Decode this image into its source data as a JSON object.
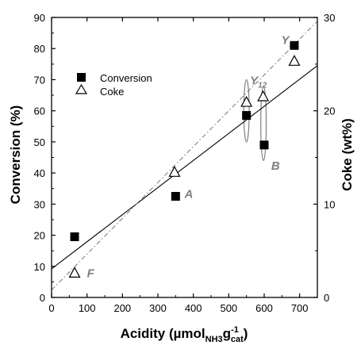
{
  "chart_data": {
    "type": "scatter",
    "xlabel_main": "Acidity (µmol",
    "xlabel_sub1": "NH3",
    "xlabel_mid": "g",
    "xlabel_sup": "-1",
    "xlabel_sub2": "cat",
    "xlabel_end": ")",
    "ylabel_left": "Conversion (%)",
    "ylabel_right": "Coke (wt%)",
    "xlim": [
      0,
      750
    ],
    "ylim_left": [
      0,
      90
    ],
    "ylim_right": [
      0,
      30
    ],
    "x_ticks": [
      "0",
      "100",
      "200",
      "300",
      "400",
      "500",
      "600",
      "700"
    ],
    "y_left_ticks": [
      "0",
      "10",
      "20",
      "30",
      "40",
      "50",
      "60",
      "70",
      "80",
      "90"
    ],
    "y_right_ticks": [
      "0",
      "10",
      "20",
      "30"
    ],
    "legend_position": "upper-left",
    "series": [
      {
        "name": "Conversion",
        "axis": "left",
        "marker": "square-filled",
        "color": "#000000",
        "x": [
          65,
          350,
          550,
          600,
          685
        ],
        "y": [
          19.5,
          32.5,
          58.5,
          49,
          81
        ]
      },
      {
        "name": "Coke",
        "axis": "right",
        "marker": "triangle-open",
        "color": "#000000",
        "x": [
          65,
          347,
          550,
          597,
          685
        ],
        "y": [
          2.6,
          13.4,
          20.9,
          21.5,
          25.3
        ]
      }
    ],
    "fits": [
      {
        "axis": "left",
        "style": "solid",
        "x": [
          0,
          750
        ],
        "y": [
          9.2,
          74.5
        ]
      },
      {
        "axis": "right",
        "style": "dash-dot",
        "x": [
          0,
          750
        ],
        "y": [
          0.8,
          29.6
        ]
      }
    ],
    "annotations": [
      {
        "text": "A",
        "x": 375,
        "y": 32
      },
      {
        "text": "B",
        "x": 620,
        "y": 41
      },
      {
        "text": "F",
        "x": 100,
        "y": 6.5
      },
      {
        "text": "Y",
        "sub": "5",
        "x": 648,
        "y": 81.5
      },
      {
        "text": "Y",
        "sub": "12",
        "x": 560,
        "y": 68.5
      }
    ],
    "ellipses": [
      {
        "cx": 550,
        "cy": 60,
        "rx": 17,
        "ry": 10
      },
      {
        "cx": 598,
        "cy": 56,
        "rx": 17,
        "ry": 12
      }
    ],
    "annotation_color": "#808080"
  }
}
